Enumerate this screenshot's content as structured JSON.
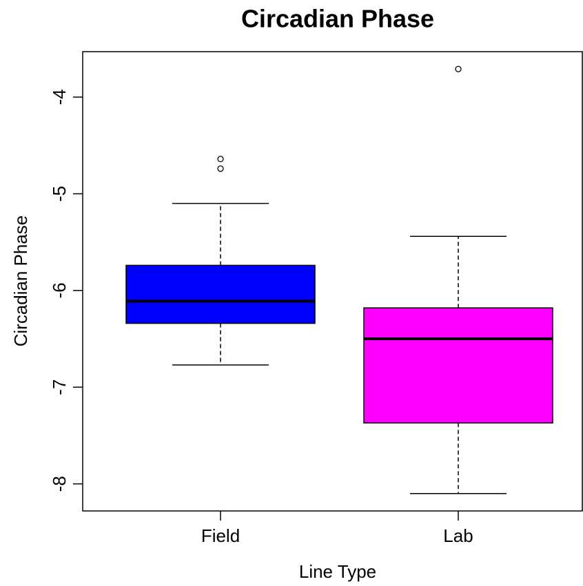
{
  "chart_data": {
    "type": "box",
    "title": "Circadian Phase",
    "x_label": "Line Type",
    "y_label": "Circadian Phase",
    "categories": [
      "Field",
      "Lab"
    ],
    "colors": [
      "#0000ff",
      "#ff00ff"
    ],
    "boxes": [
      {
        "whisker_low": -6.77,
        "q1": -6.34,
        "median": -6.11,
        "q3": -5.74,
        "whisker_high": -5.1,
        "outliers": [
          -4.64,
          -4.74
        ]
      },
      {
        "whisker_low": -8.1,
        "q1": -7.37,
        "median": -6.5,
        "q3": -6.18,
        "whisker_high": -5.44,
        "outliers": [
          -3.71
        ]
      }
    ],
    "ylim": [
      -8.28,
      -3.53
    ],
    "yticks": [
      -8,
      -7,
      -6,
      -5,
      -4
    ]
  }
}
